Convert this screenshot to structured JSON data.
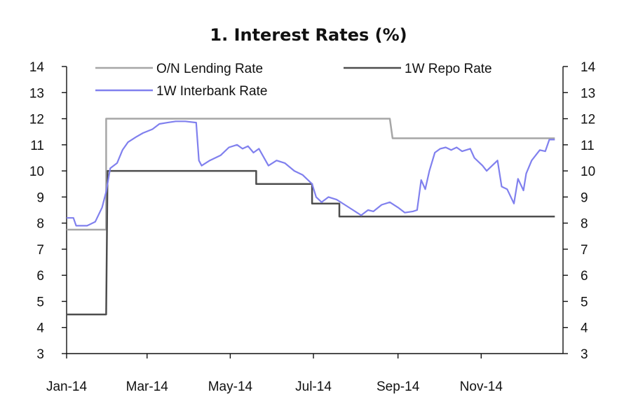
{
  "chart_data": {
    "type": "line",
    "title": "1. Interest Rates (%)",
    "xlabel": "",
    "ylabel": "",
    "x_type": "date",
    "xlim": [
      "2014-01-01",
      "2014-12-31"
    ],
    "ylim": [
      3,
      14
    ],
    "y_ticks": [
      "3",
      "4",
      "5",
      "6",
      "7",
      "8",
      "9",
      "10",
      "11",
      "12",
      "13",
      "14"
    ],
    "y2_ticks": [
      "3",
      "4",
      "5",
      "6",
      "7",
      "8",
      "9",
      "10",
      "11",
      "12",
      "13",
      "14"
    ],
    "x_ticks": [
      {
        "label": "Jan-14",
        "date": "2014-01-01"
      },
      {
        "label": "Mar-14",
        "date": "2014-03-01"
      },
      {
        "label": "May-14",
        "date": "2014-05-01"
      },
      {
        "label": "Jul-14",
        "date": "2014-07-01"
      },
      {
        "label": "Sep-14",
        "date": "2014-09-01"
      },
      {
        "label": "Nov-14",
        "date": "2014-11-01"
      }
    ],
    "grid": false,
    "legend_position": "top",
    "series": [
      {
        "name": "O/N Lending Rate",
        "color": "#a6a6a6",
        "x": [
          "2014-01-01",
          "2014-01-30",
          "2014-01-30",
          "2014-08-26",
          "2014-08-28",
          "2014-12-25"
        ],
        "y": [
          7.75,
          7.75,
          12.0,
          12.0,
          11.25,
          11.25
        ]
      },
      {
        "name": "1W Repo Rate",
        "color": "#4d4d4d",
        "x": [
          "2014-01-01",
          "2014-01-30",
          "2014-01-31",
          "2014-05-20",
          "2014-05-20",
          "2014-06-30",
          "2014-06-30",
          "2014-07-20",
          "2014-07-20",
          "2014-12-25"
        ],
        "y": [
          4.5,
          4.5,
          10.0,
          10.0,
          9.5,
          9.5,
          8.75,
          8.75,
          8.25,
          8.25
        ]
      },
      {
        "name": "1W Interbank Rate",
        "color": "#8080ee",
        "x": [
          "2014-01-01",
          "2014-01-06",
          "2014-01-08",
          "2014-01-16",
          "2014-01-22",
          "2014-01-27",
          "2014-01-30",
          "2014-02-02",
          "2014-02-07",
          "2014-02-11",
          "2014-02-15",
          "2014-02-21",
          "2014-02-26",
          "2014-03-05",
          "2014-03-10",
          "2014-03-16",
          "2014-03-22",
          "2014-03-29",
          "2014-04-06",
          "2014-04-08",
          "2014-04-10",
          "2014-04-16",
          "2014-04-24",
          "2014-04-30",
          "2014-05-06",
          "2014-05-10",
          "2014-05-14",
          "2014-05-18",
          "2014-05-22",
          "2014-05-29",
          "2014-06-04",
          "2014-06-10",
          "2014-06-17",
          "2014-06-23",
          "2014-06-30",
          "2014-07-03",
          "2014-07-07",
          "2014-07-12",
          "2014-07-18",
          "2014-07-24",
          "2014-07-30",
          "2014-08-05",
          "2014-08-10",
          "2014-08-14",
          "2014-08-20",
          "2014-08-26",
          "2014-09-01",
          "2014-09-06",
          "2014-09-12",
          "2014-09-15",
          "2014-09-18",
          "2014-09-21",
          "2014-09-24",
          "2014-09-28",
          "2014-10-02",
          "2014-10-06",
          "2014-10-10",
          "2014-10-14",
          "2014-10-18",
          "2014-10-24",
          "2014-10-27",
          "2014-11-02",
          "2014-11-05",
          "2014-11-09",
          "2014-11-13",
          "2014-11-16",
          "2014-11-20",
          "2014-11-25",
          "2014-11-28",
          "2014-12-02",
          "2014-12-04",
          "2014-12-08",
          "2014-12-11",
          "2014-12-14",
          "2014-12-18",
          "2014-12-21",
          "2014-12-25"
        ],
        "y": [
          8.2,
          8.2,
          7.9,
          7.9,
          8.05,
          8.6,
          9.2,
          10.1,
          10.3,
          10.8,
          11.1,
          11.3,
          11.45,
          11.6,
          11.8,
          11.85,
          11.9,
          11.9,
          11.85,
          10.4,
          10.2,
          10.4,
          10.6,
          10.9,
          11.0,
          10.85,
          10.95,
          10.7,
          10.85,
          10.2,
          10.4,
          10.3,
          10.0,
          9.85,
          9.5,
          9.0,
          8.8,
          9.0,
          8.9,
          8.7,
          8.5,
          8.3,
          8.5,
          8.45,
          8.7,
          8.8,
          8.6,
          8.4,
          8.45,
          8.5,
          9.65,
          9.3,
          10.0,
          10.7,
          10.85,
          10.9,
          10.8,
          10.9,
          10.75,
          10.85,
          10.5,
          10.2,
          10.0,
          10.2,
          10.4,
          9.4,
          9.3,
          8.75,
          9.7,
          9.25,
          9.9,
          10.4,
          10.6,
          10.8,
          10.75,
          11.2,
          11.2
        ]
      }
    ]
  }
}
